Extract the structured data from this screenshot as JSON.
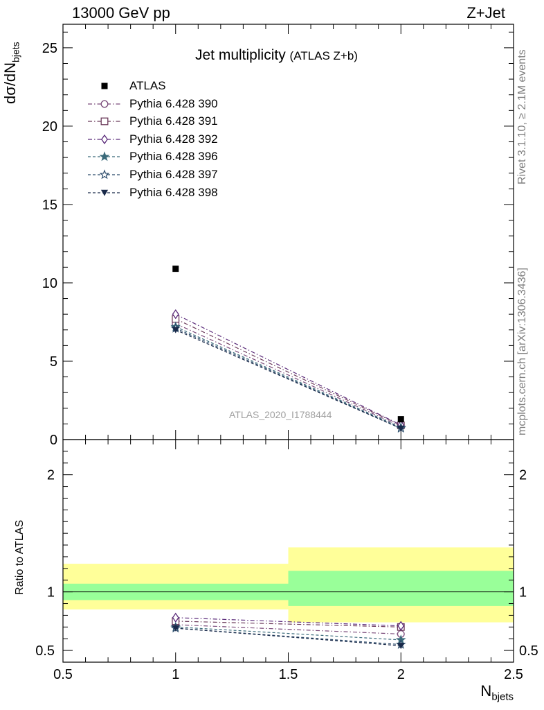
{
  "header": {
    "energy_label": "13000 GeV pp",
    "process_label": "Z+Jet"
  },
  "side_labels": {
    "rivet": "Rivet 3.1.10, ≥ 2.1M events",
    "mcplots": "mcplots.cern.ch [arXiv:1306.3436]"
  },
  "colors": {
    "atlas": "#000000",
    "p390": "#7a4a7a",
    "p391": "#6b3a5a",
    "p392": "#5a2a7a",
    "p396": "#3a6a7a",
    "p397": "#2a4a6a",
    "p398": "#1a2a4a",
    "band_inner": "#99ff99",
    "band_outer": "#ffff99"
  },
  "chart_data": [
    {
      "type": "line",
      "title": "Jet multiplicity",
      "subtitle": "(ATLAS Z+b)",
      "watermark": "ATLAS_2020_I1788444",
      "ylabel_main": "dσ/dN",
      "ylabel_sub": "bjets",
      "xlim": [
        0.5,
        2.5
      ],
      "ylim": [
        0,
        26.5
      ],
      "yticks": [
        0,
        5,
        10,
        15,
        20,
        25
      ],
      "ytick_labels": [
        "0",
        "5",
        "10",
        "15",
        "20",
        "25"
      ],
      "legend_position": "top-left",
      "x": [
        1,
        2
      ],
      "data": {
        "name": "ATLAS",
        "values": [
          10.9,
          1.3
        ]
      },
      "series": [
        {
          "name": "Pythia 6.428 390",
          "values": [
            7.4,
            0.84
          ],
          "marker": "circle-open",
          "dash": "dashdot"
        },
        {
          "name": "Pythia 6.428 391",
          "values": [
            7.7,
            0.91
          ],
          "marker": "square-open",
          "dash": "dashdot"
        },
        {
          "name": "Pythia 6.428 392",
          "values": [
            8.0,
            0.93
          ],
          "marker": "diamond-open",
          "dash": "dashdot"
        },
        {
          "name": "Pythia 6.428 396",
          "values": [
            7.2,
            0.77
          ],
          "marker": "star-filled",
          "dash": "dashed"
        },
        {
          "name": "Pythia 6.428 397",
          "values": [
            7.1,
            0.72
          ],
          "marker": "star-open",
          "dash": "dashed"
        },
        {
          "name": "Pythia 6.428 398",
          "values": [
            7.0,
            0.71
          ],
          "marker": "triangle-down-filled",
          "dash": "dashed"
        }
      ]
    },
    {
      "type": "line",
      "title": "",
      "ylabel": "Ratio to ATLAS",
      "xlabel_main": "N",
      "xlabel_sub": "bjets",
      "xlim": [
        0.5,
        2.5
      ],
      "ylim": [
        0.4,
        2.3
      ],
      "xticks": [
        0.5,
        1,
        1.5,
        2,
        2.5
      ],
      "xtick_labels": [
        "0.5",
        "1",
        "1.5",
        "2",
        "2.5"
      ],
      "yticks": [
        0.5,
        1,
        2
      ],
      "ytick_labels": [
        "0.5",
        "1",
        "2"
      ],
      "bins": [
        [
          0.5,
          1.5
        ],
        [
          1.5,
          2.5
        ]
      ],
      "band_inner": [
        [
          0.93,
          1.07
        ],
        [
          0.88,
          1.18
        ]
      ],
      "band_outer": [
        [
          0.85,
          1.24
        ],
        [
          0.74,
          1.38
        ]
      ],
      "x": [
        1,
        2
      ],
      "series": [
        {
          "name": "Pythia 6.428 390",
          "values": [
            0.72,
            0.64
          ]
        },
        {
          "name": "Pythia 6.428 391",
          "values": [
            0.75,
            0.7
          ]
        },
        {
          "name": "Pythia 6.428 392",
          "values": [
            0.78,
            0.71
          ]
        },
        {
          "name": "Pythia 6.428 396",
          "values": [
            0.7,
            0.59
          ]
        },
        {
          "name": "Pythia 6.428 397",
          "values": [
            0.69,
            0.55
          ]
        },
        {
          "name": "Pythia 6.428 398",
          "values": [
            0.69,
            0.54
          ]
        }
      ]
    }
  ]
}
